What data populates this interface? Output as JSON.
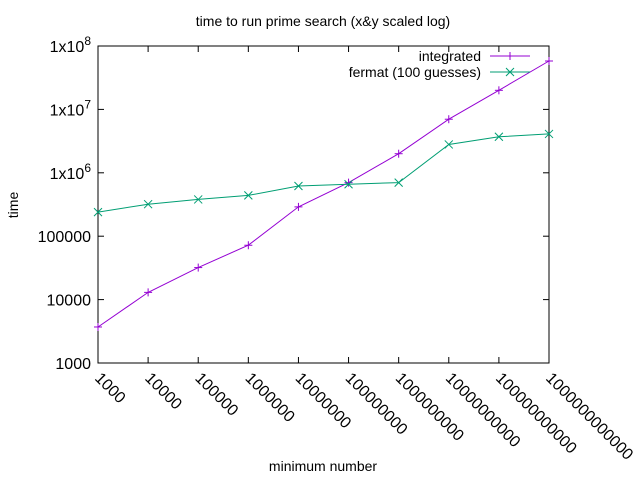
{
  "chart_data": {
    "type": "line",
    "title": "time to run prime search (x&y scaled log)",
    "xlabel": "minimum number",
    "ylabel": "time",
    "x_scale": "log",
    "y_scale": "log",
    "xlim": [
      1000,
      1000000000000
    ],
    "ylim": [
      1000,
      100000000
    ],
    "x_ticks": [
      {
        "value": 1000,
        "label": "1000"
      },
      {
        "value": 10000,
        "label": "10000"
      },
      {
        "value": 100000,
        "label": "100000"
      },
      {
        "value": 1000000,
        "label": "1000000"
      },
      {
        "value": 10000000,
        "label": "10000000"
      },
      {
        "value": 100000000,
        "label": "100000000"
      },
      {
        "value": 1000000000,
        "label": "1000000000"
      },
      {
        "value": 10000000000,
        "label": "10000000000"
      },
      {
        "value": 100000000000,
        "label": "100000000000"
      },
      {
        "value": 1000000000000,
        "label": "1000000000000"
      }
    ],
    "y_ticks": [
      {
        "value": 1000,
        "base": "1000",
        "exp": ""
      },
      {
        "value": 10000,
        "base": "10000",
        "exp": ""
      },
      {
        "value": 100000,
        "base": "100000",
        "exp": ""
      },
      {
        "value": 1000000,
        "base": "1x10",
        "exp": "6"
      },
      {
        "value": 10000000,
        "base": "1x10",
        "exp": "7"
      },
      {
        "value": 100000000,
        "base": "1x10",
        "exp": "8"
      }
    ],
    "x": [
      1000,
      10000,
      100000,
      1000000,
      10000000,
      100000000,
      1000000000,
      10000000000,
      100000000000,
      1000000000000
    ],
    "series": [
      {
        "name": "integrated",
        "color": "#9400d3",
        "marker": "plus",
        "values": [
          3700,
          13000,
          32000,
          72000,
          290000,
          700000,
          2000000,
          7000000,
          20000000,
          58000000
        ]
      },
      {
        "name": "fermat (100 guesses)",
        "color": "#009e73",
        "marker": "x",
        "values": [
          240000,
          320000,
          380000,
          440000,
          620000,
          660000,
          700000,
          2800000,
          3700000,
          4100000
        ]
      }
    ],
    "grid": false,
    "legend": "top-right"
  }
}
